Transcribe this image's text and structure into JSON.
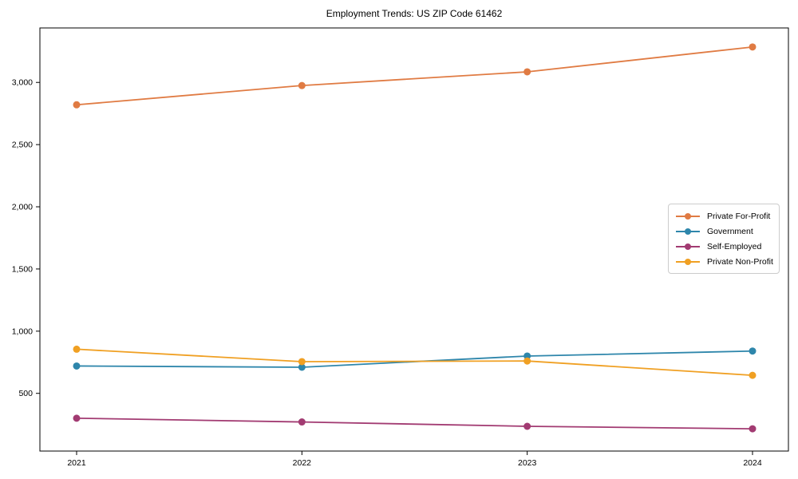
{
  "chart_data": {
    "type": "line",
    "title": "Employment Trends: US ZIP Code 61462",
    "x_labels": [
      "2021",
      "2022",
      "2023",
      "2024"
    ],
    "series": [
      {
        "name": "Private For-Profit",
        "color": "#E07B43",
        "values": [
          2820,
          2975,
          3085,
          3285
        ]
      },
      {
        "name": "Government",
        "color": "#2E86AB",
        "values": [
          720,
          710,
          800,
          840
        ]
      },
      {
        "name": "Self-Employed",
        "color": "#A23B72",
        "values": [
          300,
          270,
          235,
          215
        ]
      },
      {
        "name": "Private Non-Profit",
        "color": "#F0A023",
        "values": [
          855,
          755,
          760,
          645
        ]
      }
    ],
    "yticks": [
      500,
      1000,
      1500,
      2000,
      2500,
      3000
    ],
    "ytick_labels": [
      "500",
      "1,000",
      "1,500",
      "2,000",
      "2,500",
      "3,000"
    ],
    "ylim": [
      36,
      3438
    ],
    "grid": false,
    "legend_position": "center right",
    "xlabel": "",
    "ylabel": "",
    "axis_color": "#000000",
    "tick_label_color": "#000000"
  }
}
